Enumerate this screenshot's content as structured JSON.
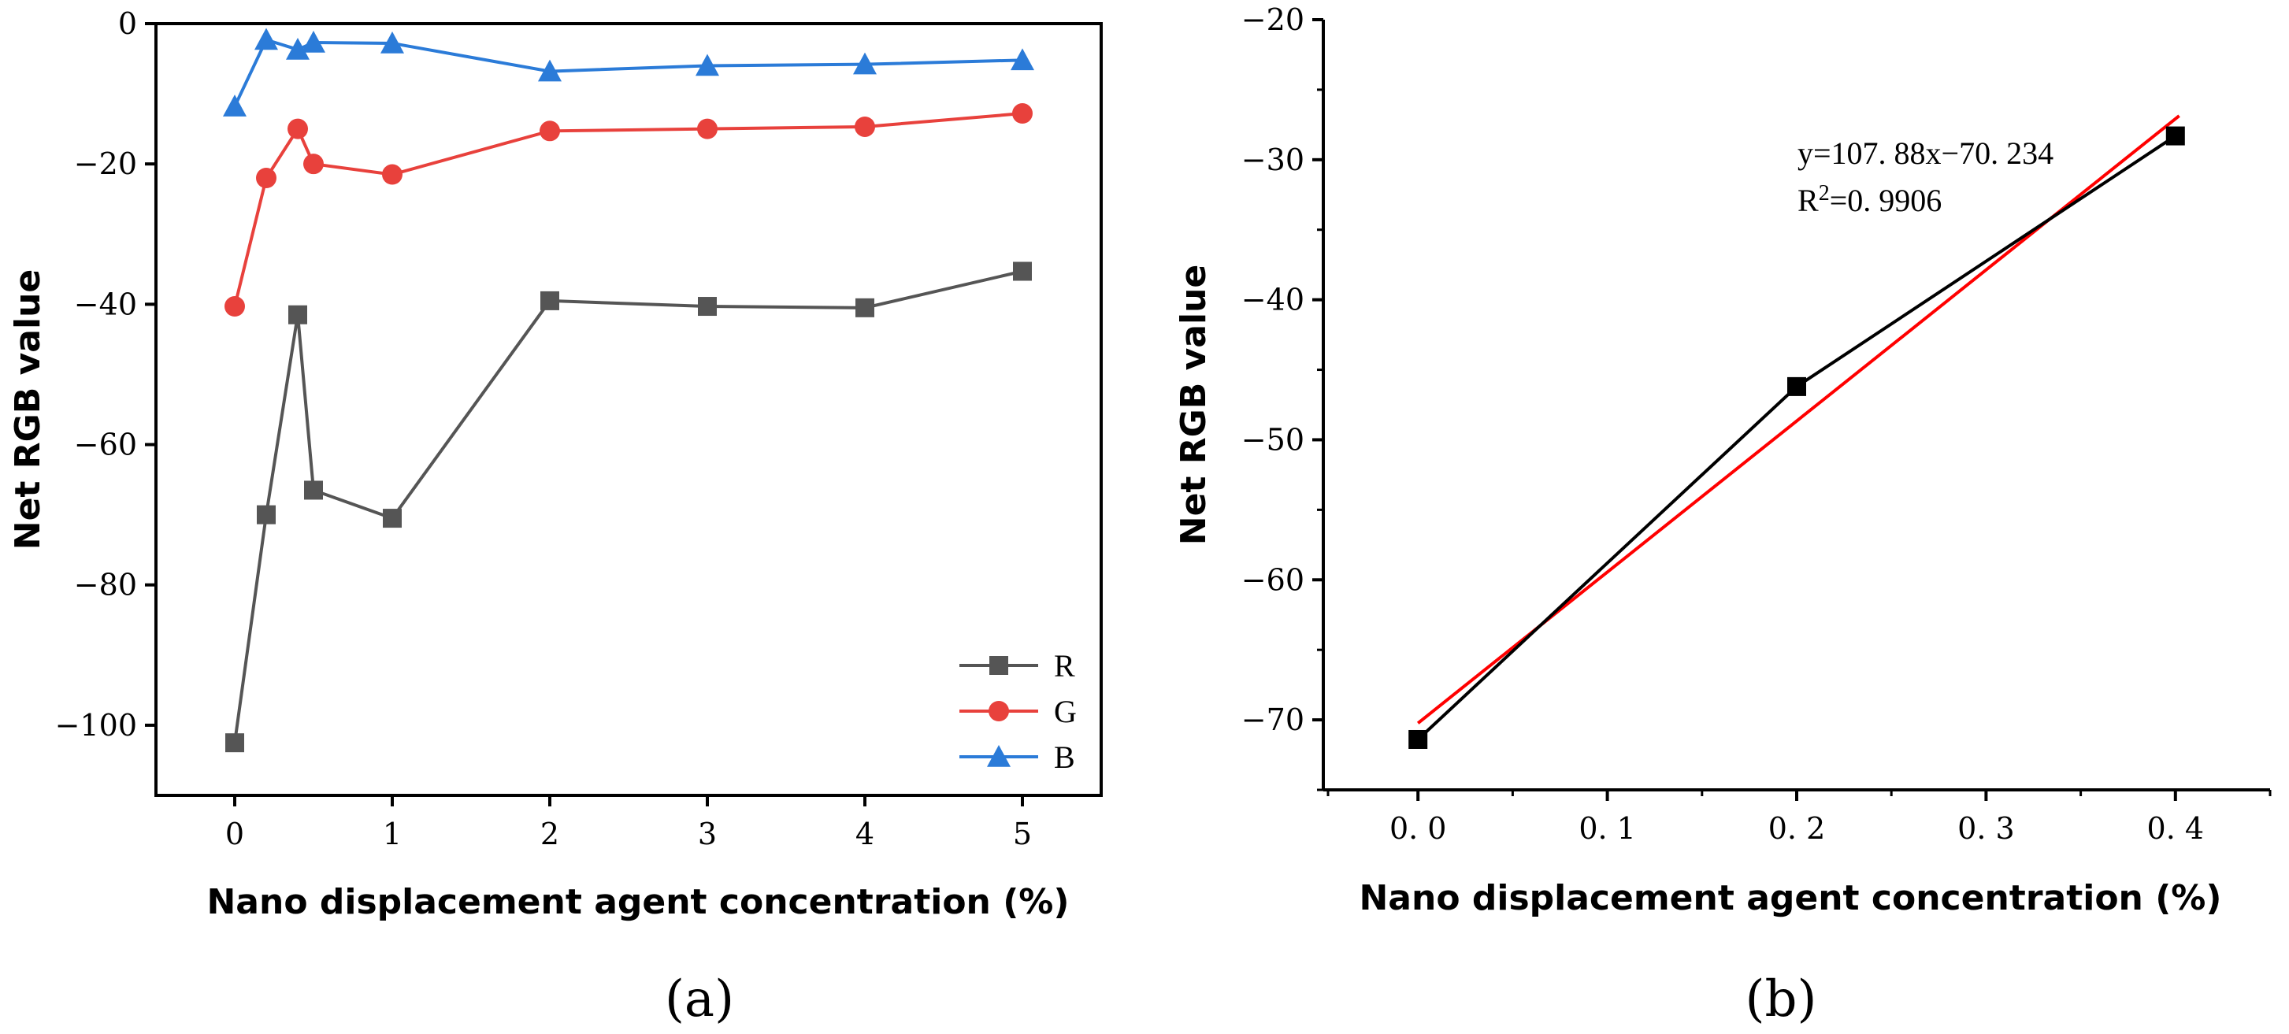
{
  "chart_data": [
    {
      "type": "line",
      "panel_label": "(a)",
      "xlabel": "Nano displacement agent concentration (%)",
      "ylabel": "Net RGB value",
      "xlim": [
        -0.5,
        5.5
      ],
      "ylim": [
        -110,
        0
      ],
      "x_ticks": [
        0,
        1,
        2,
        3,
        4,
        5
      ],
      "y_ticks": [
        0,
        -20,
        -40,
        -60,
        -80,
        -100
      ],
      "x_tick_labels": [
        "0",
        "1",
        "2",
        "3",
        "4",
        "5"
      ],
      "y_tick_labels": [
        "0",
        "−20",
        "−40",
        "−60",
        "−80",
        "−100"
      ],
      "legend_position": "bottom-right",
      "grid": false,
      "x": [
        0,
        0.2,
        0.4,
        0.5,
        1,
        2,
        3,
        4,
        5
      ],
      "series": [
        {
          "name": "R",
          "color": "#555555",
          "marker": "square",
          "values": [
            -102.5,
            -70,
            -41.5,
            -66.5,
            -70.5,
            -39.5,
            -40.3,
            -40.5,
            -35.3
          ]
        },
        {
          "name": "G",
          "color": "#e8413c",
          "marker": "circle",
          "values": [
            -40.3,
            -22,
            -15,
            -20,
            -21.5,
            -15.3,
            -15,
            -14.7,
            -12.8
          ]
        },
        {
          "name": "B",
          "color": "#2b7bd8",
          "marker": "triangle",
          "values": [
            -11.8,
            -2.3,
            -3.7,
            -2.7,
            -2.8,
            -6.8,
            -6,
            -5.8,
            -5.2
          ]
        }
      ]
    },
    {
      "type": "line",
      "panel_label": "(b)",
      "xlabel": "Nano displacement agent concentration (%)",
      "ylabel": "Net RGB value",
      "xlim": [
        -0.05,
        0.45
      ],
      "ylim": [
        -75,
        -20
      ],
      "x_ticks": [
        0.0,
        0.1,
        0.2,
        0.3,
        0.4
      ],
      "y_ticks": [
        -20,
        -30,
        -40,
        -50,
        -60,
        -70
      ],
      "x_tick_labels": [
        "0. 0",
        "0. 1",
        "0. 2",
        "0. 3",
        "0. 4"
      ],
      "y_tick_labels": [
        "−20",
        "−30",
        "−40",
        "−50",
        "−60",
        "−70"
      ],
      "grid": false,
      "x": [
        0.0,
        0.2,
        0.4
      ],
      "series": [
        {
          "color": "#000000",
          "marker": "square",
          "values": [
            -71.4,
            -46.2,
            -28.3
          ]
        }
      ],
      "fit": {
        "slope": 107.88,
        "intercept": -70.234,
        "x_range": [
          0.0,
          0.4
        ],
        "color": "#ff0000"
      },
      "annotation": {
        "equation": "y=107. 88x−70. 234",
        "r2_prefix": "R",
        "r2_sup": "2",
        "r2_value": "=0. 9906"
      }
    }
  ]
}
